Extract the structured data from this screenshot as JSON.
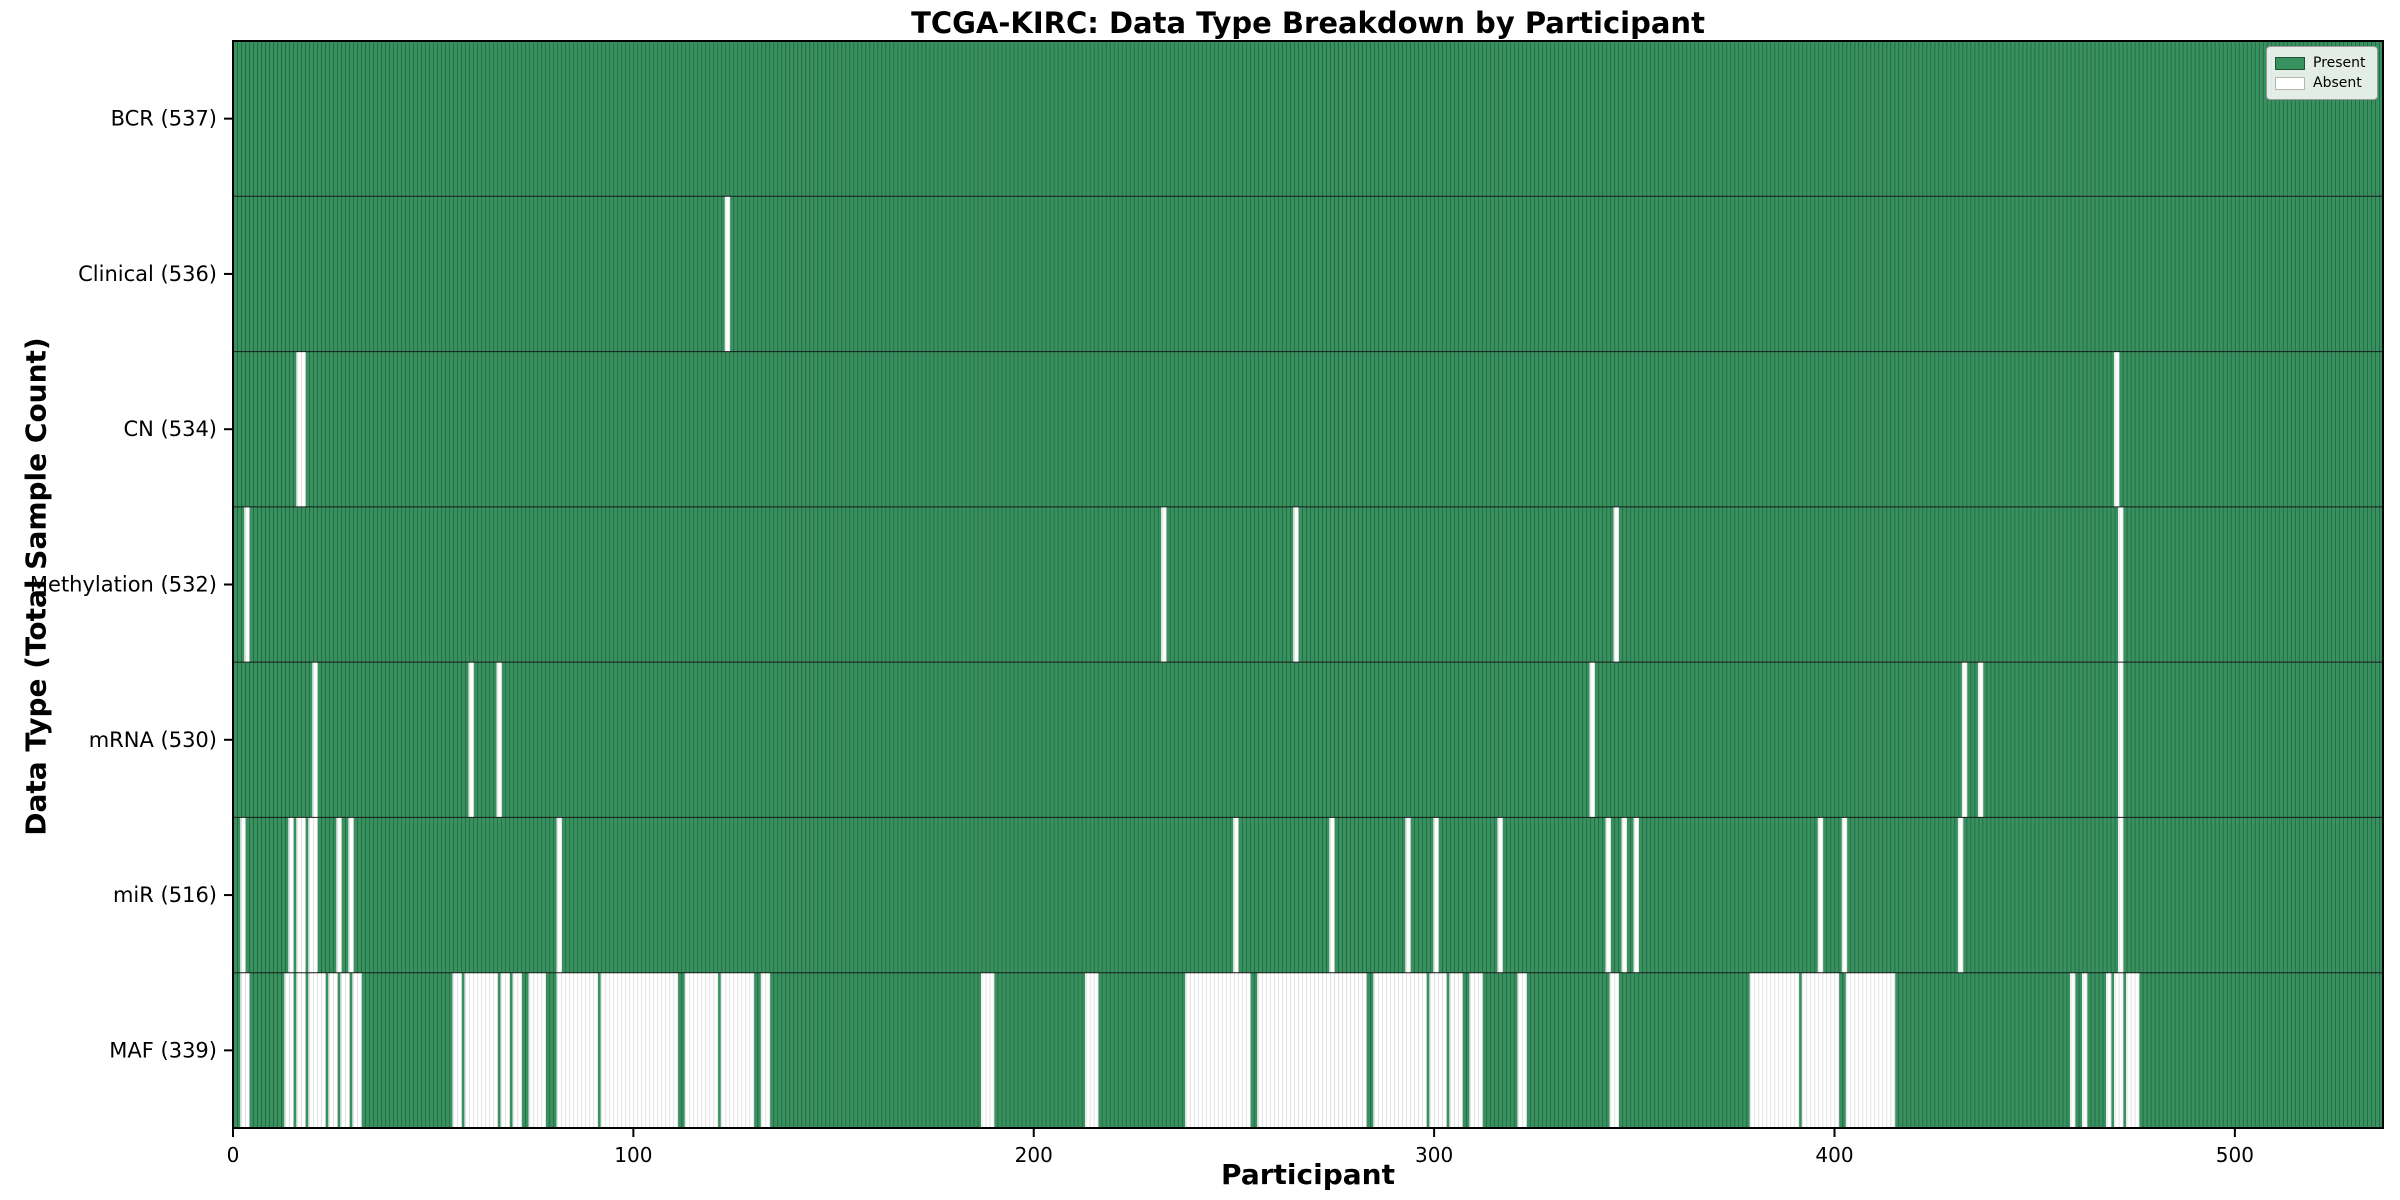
{
  "title": "TCGA-KIRC: Data Type Breakdown by Participant",
  "x_axis": {
    "label": "Participant",
    "ticks": [
      0,
      100,
      200,
      300,
      400,
      500
    ]
  },
  "y_axis": {
    "label": "Data Type (Total Sample Count)"
  },
  "legend": {
    "present_label": "Present",
    "absent_label": "Absent"
  },
  "colors": {
    "present": "#38925f",
    "present_edge": "#1c5236",
    "absent": "#ffffff",
    "absent_edge": "#d0d0d0",
    "separator": "#1a1a1a",
    "frame": "#000000",
    "tick_text": "#000000"
  },
  "chart_data": {
    "type": "heatmap",
    "subtype": "binary presence/absence matrix, one column per participant",
    "title": "TCGA-KIRC: Data Type Breakdown by Participant",
    "xlabel": "Participant",
    "ylabel": "Data Type (Total Sample Count)",
    "x_range": [
      0,
      537
    ],
    "n_participants": 537,
    "legend_position": "upper right",
    "rows": [
      {
        "label": "BCR (537)",
        "data_type": "BCR",
        "present_count": 537,
        "absent_ranges": []
      },
      {
        "label": "Clinical (536)",
        "data_type": "Clinical",
        "present_count": 536,
        "absent_ranges": [
          [
            123,
            123
          ]
        ]
      },
      {
        "label": "CN (534)",
        "data_type": "CN",
        "present_count": 534,
        "absent_ranges": [
          [
            16,
            17
          ],
          [
            470,
            470
          ]
        ]
      },
      {
        "label": "Methylation (532)",
        "data_type": "Methylation",
        "present_count": 532,
        "absent_ranges": [
          [
            3,
            3
          ],
          [
            232,
            232
          ],
          [
            265,
            265
          ],
          [
            345,
            345
          ],
          [
            471,
            471
          ]
        ]
      },
      {
        "label": "mRNA (530)",
        "data_type": "mRNA",
        "present_count": 530,
        "absent_ranges": [
          [
            20,
            20
          ],
          [
            59,
            59
          ],
          [
            66,
            66
          ],
          [
            339,
            339
          ],
          [
            432,
            432
          ],
          [
            436,
            436
          ],
          [
            471,
            471
          ]
        ]
      },
      {
        "label": "miR (516)",
        "data_type": "miR",
        "present_count": 516,
        "absent_ranges": [
          [
            2,
            2
          ],
          [
            14,
            14
          ],
          [
            16,
            17
          ],
          [
            19,
            20
          ],
          [
            26,
            26
          ],
          [
            29,
            29
          ],
          [
            81,
            81
          ],
          [
            250,
            250
          ],
          [
            274,
            274
          ],
          [
            293,
            293
          ],
          [
            300,
            300
          ],
          [
            316,
            316
          ],
          [
            343,
            343
          ],
          [
            347,
            347
          ],
          [
            350,
            350
          ],
          [
            396,
            396
          ],
          [
            402,
            402
          ],
          [
            431,
            431
          ],
          [
            471,
            471
          ]
        ]
      },
      {
        "label": "MAF (339)",
        "data_type": "MAF",
        "present_count": 339,
        "absent_ranges": [
          [
            2,
            3
          ],
          [
            13,
            14
          ],
          [
            16,
            17
          ],
          [
            19,
            22
          ],
          [
            24,
            25
          ],
          [
            27,
            28
          ],
          [
            30,
            31
          ],
          [
            55,
            56
          ],
          [
            58,
            65
          ],
          [
            67,
            68
          ],
          [
            70,
            71
          ],
          [
            74,
            77
          ],
          [
            81,
            90
          ],
          [
            92,
            110
          ],
          [
            113,
            120
          ],
          [
            122,
            129
          ],
          [
            132,
            133
          ],
          [
            187,
            189
          ],
          [
            213,
            215
          ],
          [
            238,
            253
          ],
          [
            256,
            282
          ],
          [
            285,
            297
          ],
          [
            299,
            302
          ],
          [
            304,
            306
          ],
          [
            309,
            311
          ],
          [
            321,
            322
          ],
          [
            344,
            345
          ],
          [
            379,
            390
          ],
          [
            392,
            400
          ],
          [
            403,
            414
          ],
          [
            459,
            459
          ],
          [
            462,
            462
          ],
          [
            468,
            468
          ],
          [
            470,
            471
          ],
          [
            473,
            475
          ]
        ]
      }
    ]
  }
}
